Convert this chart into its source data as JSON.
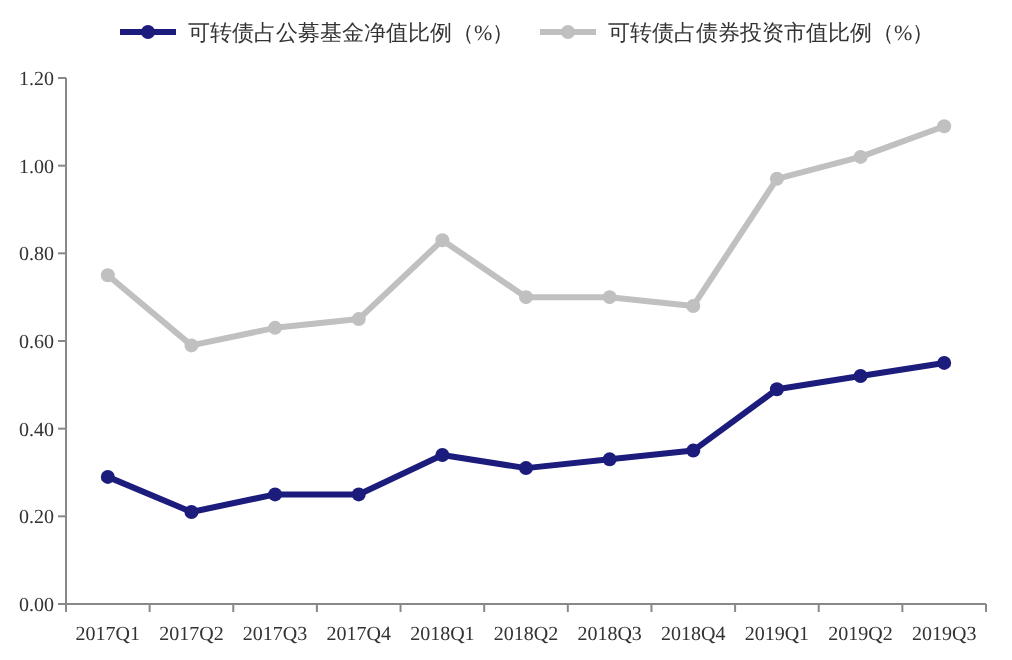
{
  "chart_data": {
    "type": "line",
    "categories": [
      "2017Q1",
      "2017Q2",
      "2017Q3",
      "2017Q4",
      "2018Q1",
      "2018Q2",
      "2018Q3",
      "2018Q4",
      "2019Q1",
      "2019Q2",
      "2019Q3"
    ],
    "series": [
      {
        "name": "可转债占公募基金净值比例（%）",
        "color": "#1c1c7c",
        "values": [
          0.29,
          0.21,
          0.25,
          0.25,
          0.34,
          0.31,
          0.33,
          0.35,
          0.49,
          0.52,
          0.55
        ]
      },
      {
        "name": "可转债占债券投资市值比例（%）",
        "color": "#c0c0c0",
        "values": [
          0.75,
          0.59,
          0.63,
          0.65,
          0.83,
          0.7,
          0.7,
          0.68,
          0.97,
          1.02,
          1.09
        ]
      }
    ],
    "ylim": [
      0,
      1.2
    ],
    "yticks": [
      {
        "value": 0,
        "label": "0.00"
      },
      {
        "value": 0.2,
        "label": "0.20"
      },
      {
        "value": 0.4,
        "label": "0.40"
      },
      {
        "value": 0.6,
        "label": "0.60"
      },
      {
        "value": 0.8,
        "label": "0.80"
      },
      {
        "value": 1.0,
        "label": "1.00"
      },
      {
        "value": 1.2,
        "label": "1.20"
      }
    ],
    "marker": "circle",
    "line_style": "solid",
    "legend": "top",
    "grid": false
  }
}
